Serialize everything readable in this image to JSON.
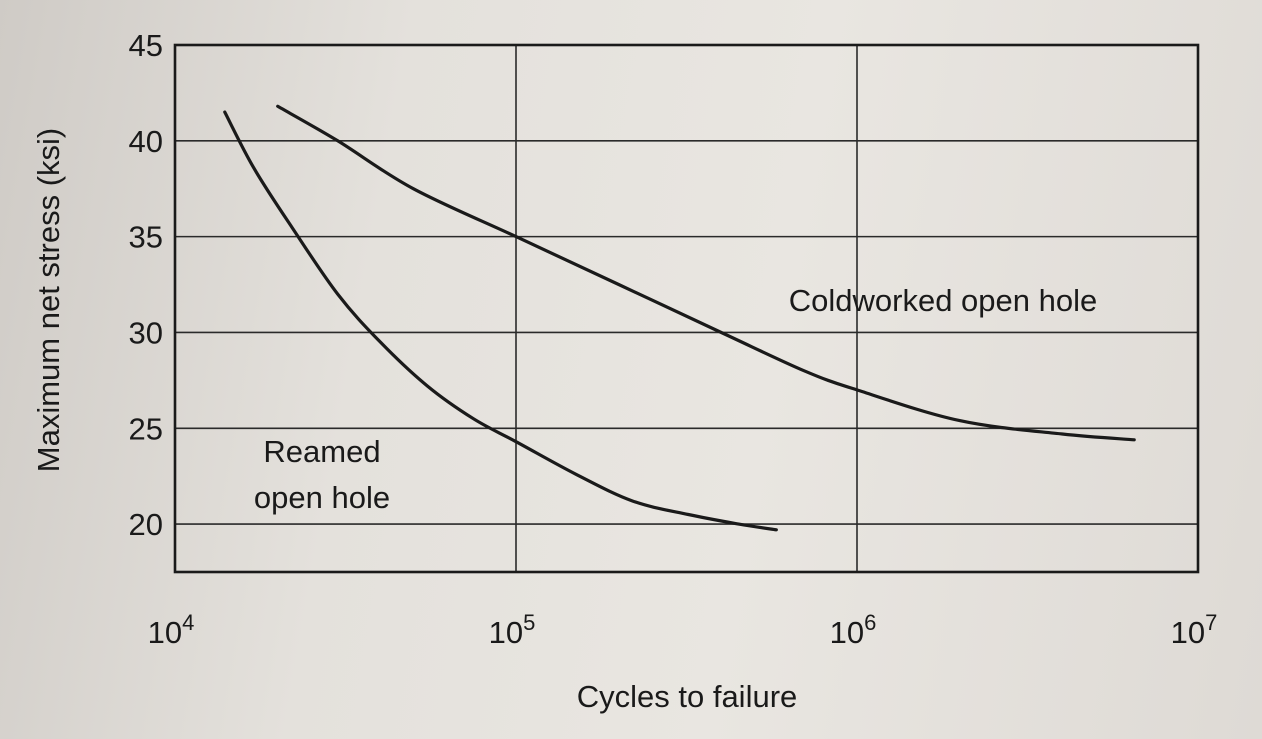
{
  "chart_data": {
    "type": "line",
    "title": "",
    "xlabel": "Cycles to failure",
    "ylabel": "Maximum net stress (ksi)",
    "x_scale": "log",
    "xlim": [
      10000,
      10000000
    ],
    "ylim": [
      17.5,
      45
    ],
    "x_ticks": [
      {
        "base": "10",
        "exp": "4",
        "value": 10000
      },
      {
        "base": "10",
        "exp": "5",
        "value": 100000
      },
      {
        "base": "10",
        "exp": "6",
        "value": 1000000
      },
      {
        "base": "10",
        "exp": "7",
        "value": 10000000
      }
    ],
    "y_ticks": [
      20,
      25,
      30,
      35,
      40,
      45
    ],
    "grid": true,
    "series": [
      {
        "name": "Reamed open hole",
        "label_lines": [
          "Reamed",
          "open hole"
        ],
        "color": "#1a1a1a",
        "points": [
          {
            "x": 14000,
            "y": 41.5
          },
          {
            "x": 17000,
            "y": 38.6
          },
          {
            "x": 22000,
            "y": 35.5
          },
          {
            "x": 30000,
            "y": 32.0
          },
          {
            "x": 40000,
            "y": 29.5
          },
          {
            "x": 55000,
            "y": 27.2
          },
          {
            "x": 75000,
            "y": 25.5
          },
          {
            "x": 100000,
            "y": 24.3
          },
          {
            "x": 150000,
            "y": 22.6
          },
          {
            "x": 220000,
            "y": 21.2
          },
          {
            "x": 320000,
            "y": 20.5
          },
          {
            "x": 450000,
            "y": 20.0
          },
          {
            "x": 580000,
            "y": 19.7
          }
        ]
      },
      {
        "name": "Coldworked open hole",
        "label_lines": [
          "Coldworked open hole"
        ],
        "color": "#1a1a1a",
        "points": [
          {
            "x": 20000,
            "y": 41.8
          },
          {
            "x": 30000,
            "y": 40.0
          },
          {
            "x": 50000,
            "y": 37.5
          },
          {
            "x": 100000,
            "y": 35.0
          },
          {
            "x": 200000,
            "y": 32.5
          },
          {
            "x": 400000,
            "y": 30.0
          },
          {
            "x": 700000,
            "y": 28.0
          },
          {
            "x": 1000000,
            "y": 27.0
          },
          {
            "x": 2000000,
            "y": 25.4
          },
          {
            "x": 4000000,
            "y": 24.7
          },
          {
            "x": 6500000,
            "y": 24.4
          }
        ]
      }
    ]
  }
}
